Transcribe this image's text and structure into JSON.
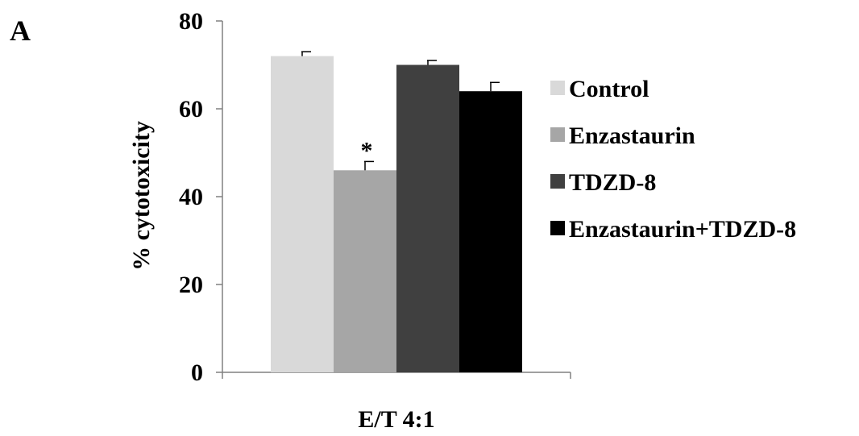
{
  "chart_data": {
    "type": "bar",
    "panel_label": "A",
    "title": "",
    "xlabel": "E/T 4:1",
    "ylabel": "% cytotoxicity",
    "ylim": [
      0,
      80
    ],
    "yticks": [
      0,
      20,
      40,
      60,
      80
    ],
    "grid": false,
    "legend_position": "right",
    "categories": [
      "E/T 4:1"
    ],
    "series": [
      {
        "name": "Control",
        "values": [
          72
        ],
        "error": [
          1
        ],
        "color": "#d9d9d9"
      },
      {
        "name": "Enzastaurin",
        "values": [
          46
        ],
        "error": [
          2
        ],
        "color": "#a6a6a6",
        "annotation": "*"
      },
      {
        "name": "TDZD-8",
        "values": [
          70
        ],
        "error": [
          1
        ],
        "color": "#404040"
      },
      {
        "name": "Enzastaurin+TDZD-8",
        "values": [
          64
        ],
        "error": [
          2
        ],
        "color": "#000000"
      }
    ]
  }
}
